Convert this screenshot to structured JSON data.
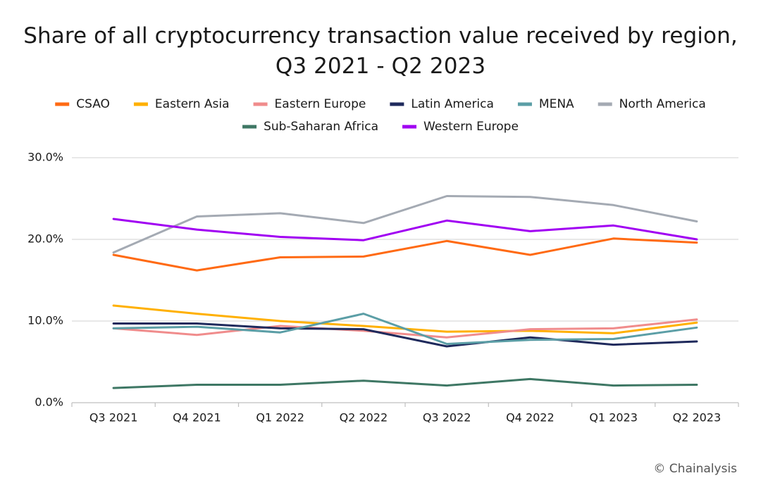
{
  "chart_data": {
    "type": "line",
    "title_lines": [
      "Share of all cryptocurrency transaction value received by region,",
      "Q3 2021 - Q2 2023"
    ],
    "categories": [
      "Q3 2021",
      "Q4 2021",
      "Q1 2022",
      "Q2 2022",
      "Q3 2022",
      "Q4 2022",
      "Q1 2023",
      "Q2 2023"
    ],
    "ylim": [
      0,
      30
    ],
    "yticks": [
      0,
      10,
      20,
      30
    ],
    "ytick_labels": [
      "0.0%",
      "10.0%",
      "20.0%",
      "30.0%"
    ],
    "grid": true,
    "legend_position": "top",
    "series": [
      {
        "name": "CSAO",
        "color": "#FF6A13",
        "values": [
          18.1,
          16.2,
          17.8,
          17.9,
          19.8,
          18.1,
          20.1,
          19.6
        ]
      },
      {
        "name": "Eastern Asia",
        "color": "#FFB000",
        "values": [
          11.9,
          10.9,
          10.0,
          9.4,
          8.7,
          8.8,
          8.5,
          9.8
        ]
      },
      {
        "name": "Eastern Europe",
        "color": "#F08C8C",
        "values": [
          9.1,
          8.3,
          9.4,
          8.8,
          8.0,
          9.0,
          9.1,
          10.2
        ]
      },
      {
        "name": "Latin America",
        "color": "#1F2A5C",
        "values": [
          9.7,
          9.7,
          9.1,
          9.0,
          6.9,
          8.0,
          7.1,
          7.5
        ]
      },
      {
        "name": "MENA",
        "color": "#5B9EA6",
        "values": [
          9.1,
          9.3,
          8.6,
          10.9,
          7.2,
          7.7,
          7.8,
          9.2
        ]
      },
      {
        "name": "North America",
        "color": "#A4AAB3",
        "values": [
          18.4,
          22.8,
          23.2,
          22.0,
          25.3,
          25.2,
          24.2,
          22.2
        ]
      },
      {
        "name": "Sub-Saharan Africa",
        "color": "#3E7764",
        "values": [
          1.8,
          2.2,
          2.2,
          2.7,
          2.1,
          2.9,
          2.1,
          2.2
        ]
      },
      {
        "name": "Western Europe",
        "color": "#A100F2",
        "values": [
          22.5,
          21.2,
          20.3,
          19.9,
          22.3,
          21.0,
          21.7,
          20.0
        ]
      }
    ]
  },
  "credit": "© Chainalysis",
  "gridline_color": "#D9D9D9",
  "axis_color": "#BFBFBF"
}
